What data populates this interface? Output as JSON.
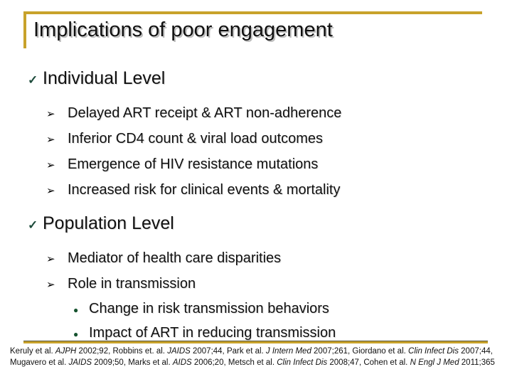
{
  "colors": {
    "accent_gold": "#C8A22B",
    "check_green": "#1D4B3B",
    "dot_green": "#15522E",
    "text": "#111111",
    "background": "#FFFFFF"
  },
  "icons": {
    "check": "✓",
    "arrow": "➢",
    "dot": "●"
  },
  "slide": {
    "title": "Implications of poor engagement",
    "sections": [
      {
        "heading": "Individual Level",
        "bullets": [
          "Delayed ART receipt & ART non-adherence",
          "Inferior CD4 count & viral load outcomes",
          "Emergence of HIV resistance mutations",
          "Increased risk for clinical events & mortality"
        ],
        "sub_bullets": []
      },
      {
        "heading": "Population Level",
        "bullets": [
          "Mediator of health care disparities",
          "Role in transmission"
        ],
        "sub_bullets": [
          "Change in risk transmission behaviors",
          "Impact of ART in reducing transmission"
        ]
      }
    ],
    "footnote_segments": [
      {
        "text": "Keruly et al. ",
        "italic": false
      },
      {
        "text": "AJPH",
        "italic": true
      },
      {
        "text": " 2002;92, Robbins et. al. ",
        "italic": false
      },
      {
        "text": "JAIDS",
        "italic": true
      },
      {
        "text": " 2007;44, Park et al. ",
        "italic": false
      },
      {
        "text": "J Intern Med",
        "italic": true
      },
      {
        "text": " 2007;261, Giordano et al. ",
        "italic": false
      },
      {
        "text": "Clin Infect Dis",
        "italic": true
      },
      {
        "text": " 2007;44, Mugavero et al. ",
        "italic": false
      },
      {
        "text": "JAIDS",
        "italic": true
      },
      {
        "text": " 2009;50, Marks et al. ",
        "italic": false
      },
      {
        "text": "AIDS",
        "italic": true
      },
      {
        "text": " 2006;20, Metsch et al. ",
        "italic": false
      },
      {
        "text": "Clin Infect Dis",
        "italic": true
      },
      {
        "text": " 2008;47, Cohen et al. ",
        "italic": false
      },
      {
        "text": "N Engl J Med",
        "italic": true
      },
      {
        "text": " 2011;365",
        "italic": false
      }
    ]
  }
}
